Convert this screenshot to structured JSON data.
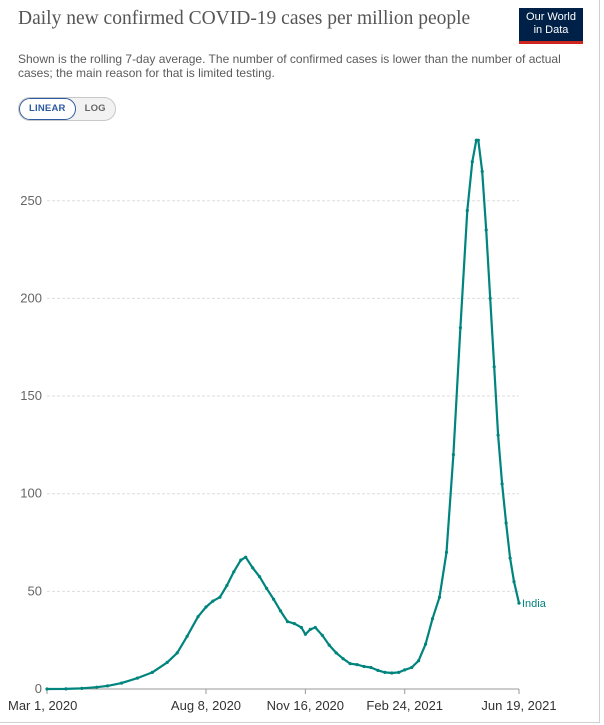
{
  "header": {
    "title": "Daily new confirmed COVID-19 cases per million people",
    "subtitle": "Shown is the rolling 7-day average. The number of confirmed cases is lower than the number of actual cases; the main reason for that is limited testing.",
    "logo_line1": "Our World",
    "logo_line2": "in Data"
  },
  "scale_toggle": {
    "options": [
      "LINEAR",
      "LOG"
    ],
    "selected": "LINEAR"
  },
  "colors": {
    "series": "#00847e",
    "grid": "#dddddd",
    "logo_bg": "#002147",
    "logo_bar": "#ce261e",
    "toggle_active": "#2d5aa0"
  },
  "chart_data": {
    "type": "line",
    "title": "Daily new confirmed COVID-19 cases per million people",
    "xlabel": "",
    "ylabel": "",
    "ylim": [
      0,
      285
    ],
    "yticks": [
      0,
      50,
      100,
      150,
      200,
      250
    ],
    "xlim": [
      "2020-03-01",
      "2021-06-19"
    ],
    "xticks": [
      {
        "date": "2020-03-01",
        "label": "Mar 1, 2020"
      },
      {
        "date": "2020-08-08",
        "label": "Aug 8, 2020"
      },
      {
        "date": "2020-11-16",
        "label": "Nov 16, 2020"
      },
      {
        "date": "2021-02-24",
        "label": "Feb 24, 2021"
      },
      {
        "date": "2021-06-19",
        "label": "Jun 19, 2021"
      }
    ],
    "grid": true,
    "legend": "end-of-line label",
    "series": [
      {
        "name": "India",
        "points": [
          [
            "2020-03-01",
            0
          ],
          [
            "2020-03-20",
            0.05
          ],
          [
            "2020-04-05",
            0.3
          ],
          [
            "2020-04-20",
            0.9
          ],
          [
            "2020-05-01",
            1.6
          ],
          [
            "2020-05-15",
            3
          ],
          [
            "2020-05-31",
            5.6
          ],
          [
            "2020-06-15",
            8.5
          ],
          [
            "2020-06-30",
            13.6
          ],
          [
            "2020-07-10",
            18.5
          ],
          [
            "2020-07-20",
            27
          ],
          [
            "2020-07-31",
            37
          ],
          [
            "2020-08-08",
            42
          ],
          [
            "2020-08-15",
            45
          ],
          [
            "2020-08-22",
            47
          ],
          [
            "2020-08-29",
            53
          ],
          [
            "2020-09-05",
            60
          ],
          [
            "2020-09-12",
            66
          ],
          [
            "2020-09-17",
            67.5
          ],
          [
            "2020-09-24",
            62
          ],
          [
            "2020-10-01",
            57.5
          ],
          [
            "2020-10-08",
            51.5
          ],
          [
            "2020-10-15",
            46
          ],
          [
            "2020-10-22",
            40
          ],
          [
            "2020-10-29",
            34.5
          ],
          [
            "2020-11-05",
            33.5
          ],
          [
            "2020-11-12",
            31.5
          ],
          [
            "2020-11-16",
            28
          ],
          [
            "2020-11-21",
            30.5
          ],
          [
            "2020-11-26",
            31.5
          ],
          [
            "2020-12-03",
            27.5
          ],
          [
            "2020-12-10",
            22.5
          ],
          [
            "2020-12-17",
            18.5
          ],
          [
            "2020-12-24",
            15.5
          ],
          [
            "2020-12-31",
            13
          ],
          [
            "2021-01-07",
            12.5
          ],
          [
            "2021-01-14",
            11.5
          ],
          [
            "2021-01-21",
            11
          ],
          [
            "2021-01-28",
            9.5
          ],
          [
            "2021-02-04",
            8.5
          ],
          [
            "2021-02-11",
            8.2
          ],
          [
            "2021-02-18",
            8.5
          ],
          [
            "2021-02-24",
            9.8
          ],
          [
            "2021-03-03",
            11
          ],
          [
            "2021-03-10",
            14.5
          ],
          [
            "2021-03-17",
            23
          ],
          [
            "2021-03-24",
            36
          ],
          [
            "2021-03-31",
            47
          ],
          [
            "2021-04-07",
            70
          ],
          [
            "2021-04-14",
            120
          ],
          [
            "2021-04-21",
            185
          ],
          [
            "2021-04-28",
            245
          ],
          [
            "2021-05-03",
            270
          ],
          [
            "2021-05-07",
            281
          ],
          [
            "2021-05-09",
            281
          ],
          [
            "2021-05-13",
            265
          ],
          [
            "2021-05-17",
            235
          ],
          [
            "2021-05-21",
            200
          ],
          [
            "2021-05-25",
            165
          ],
          [
            "2021-05-29",
            130
          ],
          [
            "2021-06-02",
            105
          ],
          [
            "2021-06-06",
            85
          ],
          [
            "2021-06-10",
            67
          ],
          [
            "2021-06-14",
            55
          ],
          [
            "2021-06-19",
            44
          ]
        ]
      }
    ]
  }
}
